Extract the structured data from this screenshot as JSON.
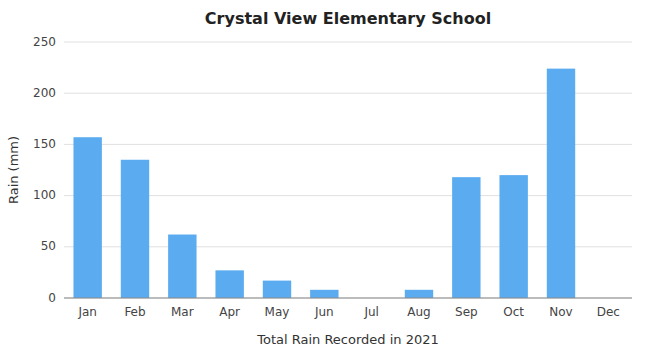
{
  "chart_data": {
    "type": "bar",
    "title": "Crystal View Elementary School",
    "xlabel": "Total Rain Recorded in 2021",
    "ylabel": "Rain (mm)",
    "categories": [
      "Jan",
      "Feb",
      "Mar",
      "Apr",
      "May",
      "Jun",
      "Jul",
      "Aug",
      "Sep",
      "Oct",
      "Nov",
      "Dec"
    ],
    "values": [
      157,
      135,
      62,
      27,
      17,
      8,
      0,
      8,
      118,
      120,
      224,
      0
    ],
    "color": "#5aabf0",
    "ylim": [
      0,
      250
    ],
    "yticks": [
      0,
      50,
      100,
      150,
      200,
      250
    ],
    "grid": true
  }
}
